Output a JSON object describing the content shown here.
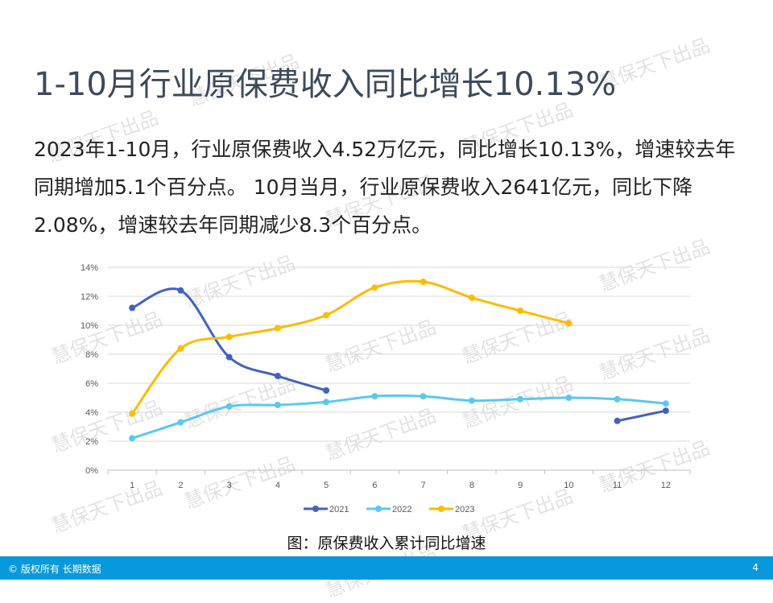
{
  "title": "1-10月行业原保费收入同比增长10.13%",
  "paragraph": "2023年1-10月，行业原保费收入4.52万亿元，同比增长10.13%，增速较去年同期增加5.1个百分点。 10月当月，行业原保费收入2641亿元，同比下降2.08%，增速较去年同期减少8.3个百分点。",
  "caption": "图：原保费收入累计同比增速",
  "footer": {
    "left": "© 版权所有 长期数据",
    "page": "4"
  },
  "watermark": "慧保天下出品",
  "colors": {
    "footer": "#0899dc",
    "s2021": "#4361c2",
    "s2022": "#5bc8f2",
    "s2023": "#ffbb00"
  },
  "chart_data": {
    "type": "line",
    "smooth": true,
    "categories": [
      "1",
      "2",
      "3",
      "4",
      "5",
      "6",
      "7",
      "8",
      "9",
      "10",
      "11",
      "12"
    ],
    "yticks": [
      "0%",
      "2%",
      "4%",
      "6%",
      "8%",
      "10%",
      "12%",
      "14%"
    ],
    "ylim": [
      0,
      14
    ],
    "grid": true,
    "legend": "bottom",
    "series": [
      {
        "name": "2021",
        "color": "#4361c2",
        "values": [
          11.2,
          12.4,
          7.8,
          6.5,
          5.5,
          null,
          null,
          null,
          null,
          null,
          3.4,
          4.1
        ]
      },
      {
        "name": "2022",
        "color": "#5bc8f2",
        "values": [
          2.2,
          3.3,
          4.4,
          4.5,
          4.7,
          5.1,
          5.1,
          4.8,
          4.9,
          5.0,
          4.9,
          4.6
        ]
      },
      {
        "name": "2023",
        "color": "#ffbb00",
        "values": [
          3.9,
          8.4,
          9.2,
          9.8,
          10.7,
          12.6,
          13.0,
          11.9,
          11.0,
          10.13,
          null,
          null
        ]
      }
    ]
  }
}
